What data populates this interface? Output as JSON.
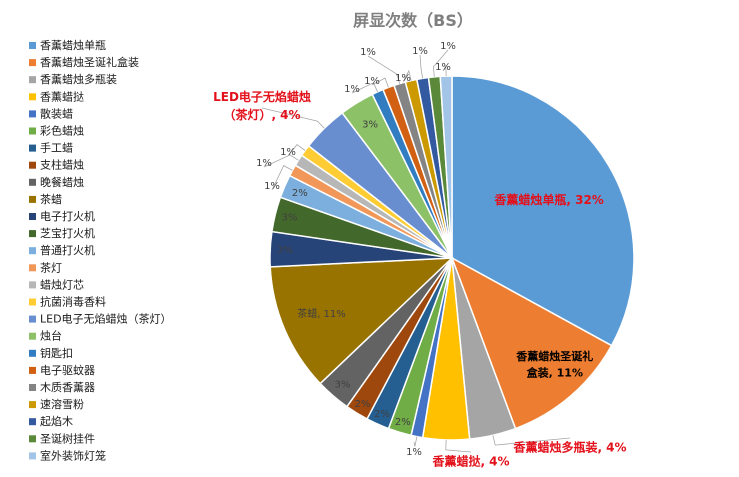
{
  "chart_data": {
    "type": "pie",
    "title": "屏显次数（BS）",
    "legend_position": "left",
    "slices": [
      {
        "name": "香薰蜡烛单瓶",
        "value": 32,
        "label": "香薰蜡烛单瓶, 32%",
        "color": "#5b9bd5"
      },
      {
        "name": "香薰蜡烛圣诞礼盒装",
        "value": 11,
        "label": "香薰蜡烛圣诞礼盒装, 11%",
        "color": "#ed7d31"
      },
      {
        "name": "香薰蜡烛多瓶装",
        "value": 4,
        "label": "香薰蜡烛多瓶装, 4%",
        "color": "#a5a5a5"
      },
      {
        "name": "香薰蜡挞",
        "value": 4,
        "label": "香薰蜡挞, 4%",
        "color": "#ffc000"
      },
      {
        "name": "散装蜡",
        "value": 1,
        "label": "1%",
        "color": "#4472c4"
      },
      {
        "name": "彩色蜡烛",
        "value": 2,
        "label": "2%",
        "color": "#70ad47"
      },
      {
        "name": "手工蜡",
        "value": 2,
        "label": "2%",
        "color": "#255e91"
      },
      {
        "name": "支柱蜡烛",
        "value": 2,
        "label": "2%",
        "color": "#9e480e"
      },
      {
        "name": "晚餐蜡烛",
        "value": 3,
        "label": "3%",
        "color": "#636363"
      },
      {
        "name": "茶蜡",
        "value": 11,
        "label": "茶蜡, 11%",
        "color": "#997300"
      },
      {
        "name": "电子打火机",
        "value": 3,
        "label": "3%",
        "color": "#264478"
      },
      {
        "name": "芝宝打火机",
        "value": 3,
        "label": "3%",
        "color": "#43682b"
      },
      {
        "name": "普通打火机",
        "value": 2,
        "label": "2%",
        "color": "#7cafdd"
      },
      {
        "name": "茶灯",
        "value": 1,
        "label": "1%",
        "color": "#f1975a"
      },
      {
        "name": "蜡烛灯芯",
        "value": 1,
        "label": "1%",
        "color": "#b7b7b7"
      },
      {
        "name": "抗菌消毒香料",
        "value": 1,
        "label": "1%",
        "color": "#ffcd33"
      },
      {
        "name": "LED电子无焰蜡烛（茶灯）",
        "value": 4,
        "label": "LED电子无焰蜡烛（茶灯）, 4%",
        "color": "#698ed0"
      },
      {
        "name": "烛台",
        "value": 3,
        "label": "3%",
        "color": "#8cc168"
      },
      {
        "name": "钥匙扣",
        "value": 1,
        "label": "1%",
        "color": "#327dc2"
      },
      {
        "name": "电子驱蚊器",
        "value": 1,
        "label": "1%",
        "color": "#d26012"
      },
      {
        "name": "木质香薰器",
        "value": 1,
        "label": "1%",
        "color": "#848484"
      },
      {
        "name": "速溶雪粉",
        "value": 1,
        "label": "1%",
        "color": "#cc9a00"
      },
      {
        "name": "起焰木",
        "value": 1,
        "label": "1%",
        "color": "#335aa1"
      },
      {
        "name": "圣诞树挂件",
        "value": 1,
        "label": "1%",
        "color": "#5a8a39"
      },
      {
        "name": "室外装饰灯笼",
        "value": 1,
        "label": "1%",
        "color": "#a2c4e6"
      }
    ]
  }
}
